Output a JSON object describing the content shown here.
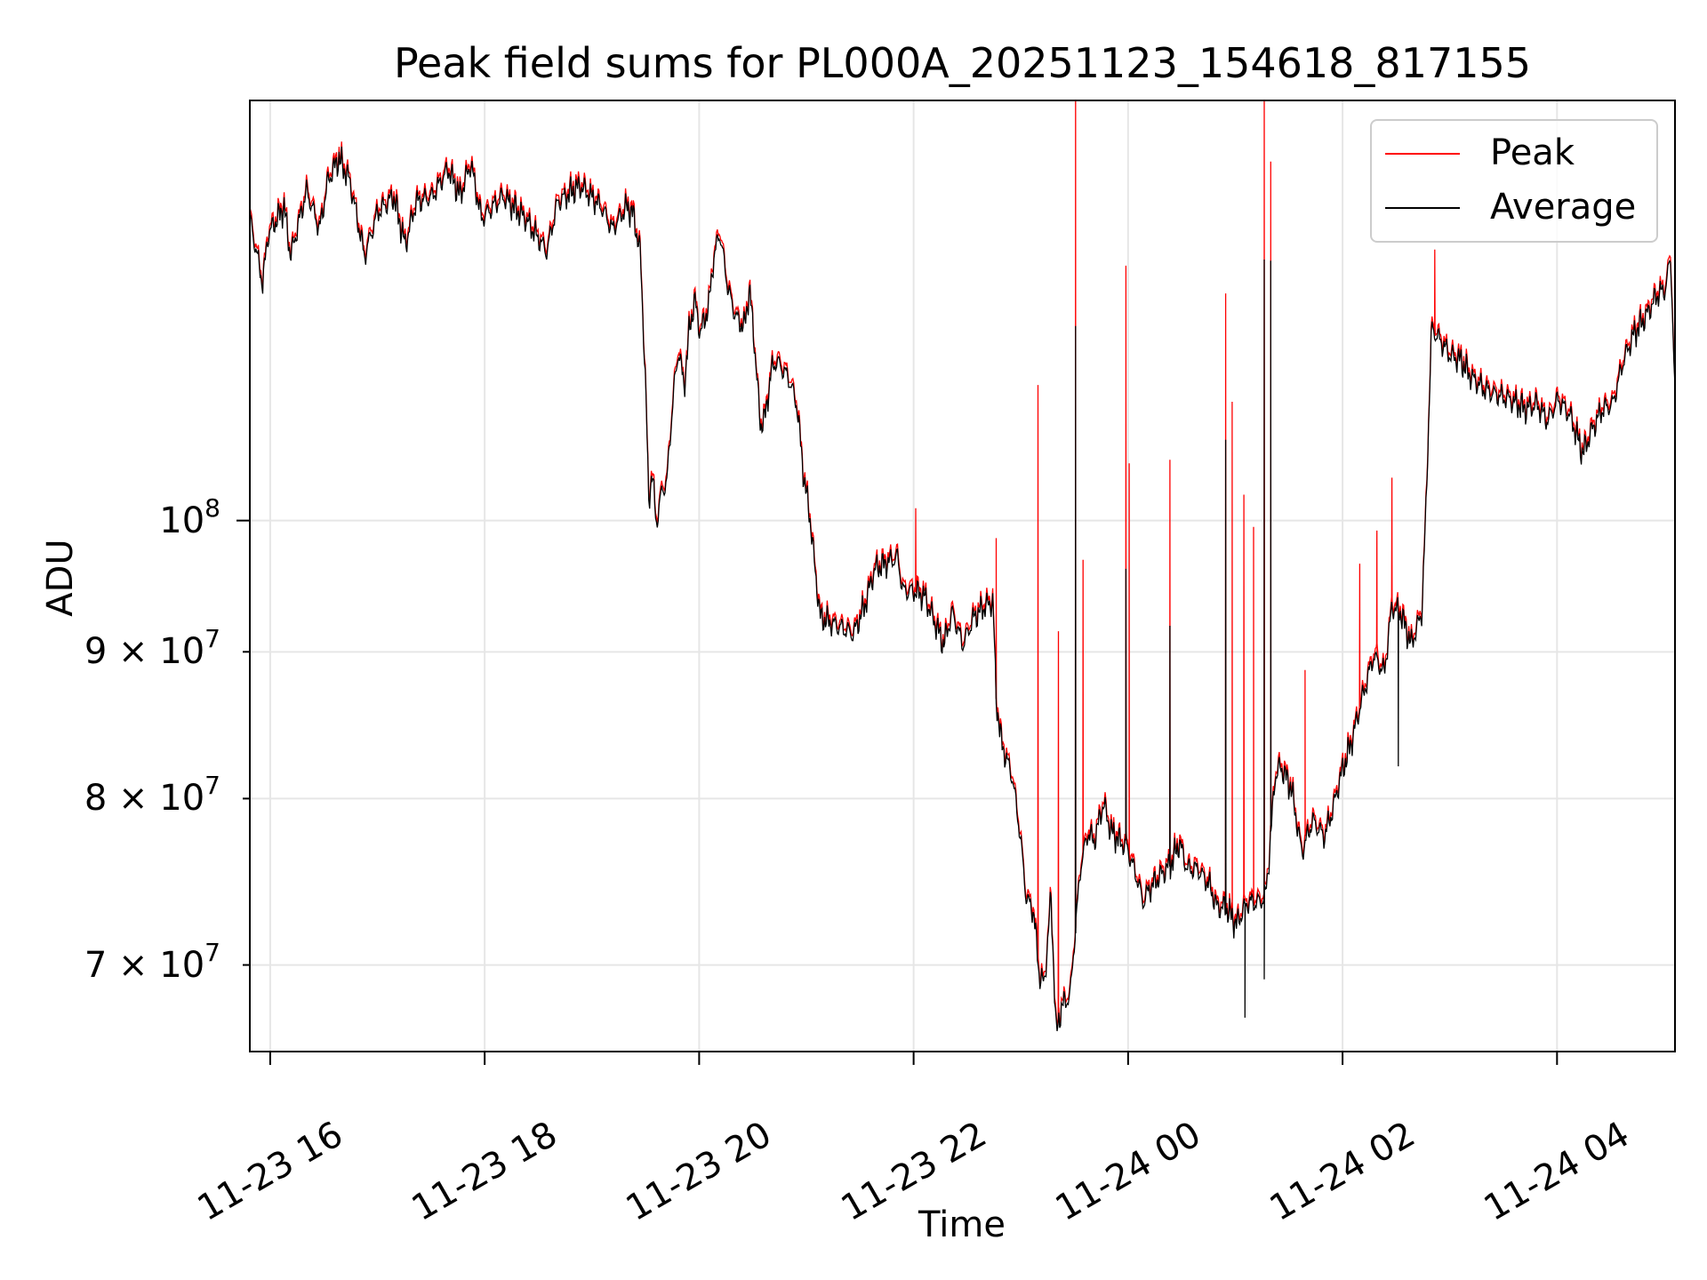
{
  "chart_data": {
    "type": "line",
    "title": "Peak field sums for PL000A_20251123_154618_817155",
    "xlabel": "Time",
    "ylabel": "ADU",
    "x_units": "hours since 11-23 00:00",
    "y_units": "millions of ADU (×1e6)",
    "yscale": "log",
    "xlim": [
      15.81,
      29.1
    ],
    "ylim": [
      65.3,
      140.1
    ],
    "grid": true,
    "legend_position": "top-right",
    "xticks": [
      {
        "value": 16,
        "label": "11-23 16"
      },
      {
        "value": 18,
        "label": "11-23 18"
      },
      {
        "value": 20,
        "label": "11-23 20"
      },
      {
        "value": 22,
        "label": "11-23 22"
      },
      {
        "value": 24,
        "label": "11-24 00"
      },
      {
        "value": 26,
        "label": "11-24 02"
      },
      {
        "value": 28,
        "label": "11-24 04"
      }
    ],
    "yticks": [
      {
        "value": 100,
        "base": "10",
        "exp": "8"
      },
      {
        "value": 90,
        "base": "9 × 10",
        "exp": "7"
      },
      {
        "value": 80,
        "base": "8 × 10",
        "exp": "7"
      },
      {
        "value": 70,
        "base": "7 × 10",
        "exp": "7"
      }
    ],
    "series": [
      {
        "name": "Peak",
        "color": "#ff0000",
        "offset_factor": 1.004,
        "spikes": [
          [
            22.02,
            101.0
          ],
          [
            22.77,
            98.6
          ],
          [
            23.16,
            111.5
          ],
          [
            23.35,
            91.5
          ],
          [
            23.51,
            145
          ],
          [
            23.58,
            96.9
          ],
          [
            23.98,
            122.7
          ],
          [
            24.01,
            104.7
          ],
          [
            24.39,
            105.0
          ],
          [
            24.91,
            120.0
          ],
          [
            24.97,
            110.0
          ],
          [
            25.08,
            102.1
          ],
          [
            25.17,
            99.5
          ],
          [
            25.27,
            145
          ],
          [
            25.33,
            133.4
          ],
          [
            25.65,
            88.7
          ],
          [
            26.16,
            96.6
          ],
          [
            26.32,
            99.2
          ],
          [
            26.46,
            103.5
          ],
          [
            26.86,
            124.3
          ]
        ]
      },
      {
        "name": "Average",
        "color": "#000000",
        "points": [
          [
            15.81,
            127.4
          ],
          [
            15.93,
            120.9
          ],
          [
            15.98,
            125.8
          ],
          [
            16.13,
            128.6
          ],
          [
            16.19,
            123.6
          ],
          [
            16.34,
            130.3
          ],
          [
            16.46,
            126.3
          ],
          [
            16.54,
            131.4
          ],
          [
            16.64,
            133.7
          ],
          [
            16.74,
            131.4
          ],
          [
            16.88,
            123.6
          ],
          [
            17.0,
            128.0
          ],
          [
            17.15,
            129.7
          ],
          [
            17.26,
            124.7
          ],
          [
            17.36,
            129.1
          ],
          [
            17.51,
            129.7
          ],
          [
            17.66,
            132.6
          ],
          [
            17.77,
            129.7
          ],
          [
            17.87,
            133.2
          ],
          [
            17.97,
            127.4
          ],
          [
            18.17,
            129.7
          ],
          [
            18.38,
            127.4
          ],
          [
            18.58,
            124.1
          ],
          [
            18.68,
            129.1
          ],
          [
            18.89,
            130.8
          ],
          [
            19.09,
            128.6
          ],
          [
            19.19,
            126.3
          ],
          [
            19.32,
            128.6
          ],
          [
            19.38,
            128.0
          ],
          [
            19.45,
            124.1
          ],
          [
            19.5,
            111.7
          ],
          [
            19.53,
            101.4
          ],
          [
            19.56,
            104.1
          ],
          [
            19.6,
            99.7
          ],
          [
            19.65,
            102.3
          ],
          [
            19.7,
            103.2
          ],
          [
            19.76,
            110.7
          ],
          [
            19.81,
            114.7
          ],
          [
            19.86,
            111.2
          ],
          [
            19.91,
            116.7
          ],
          [
            19.96,
            119.3
          ],
          [
            20.01,
            116.2
          ],
          [
            20.09,
            118.8
          ],
          [
            20.13,
            123.0
          ],
          [
            20.19,
            126.1
          ],
          [
            20.27,
            120.4
          ],
          [
            20.34,
            117.8
          ],
          [
            20.42,
            116.7
          ],
          [
            20.47,
            120.4
          ],
          [
            20.52,
            114.7
          ],
          [
            20.57,
            107.9
          ],
          [
            20.62,
            108.8
          ],
          [
            20.67,
            112.7
          ],
          [
            20.72,
            113.7
          ],
          [
            20.83,
            112.2
          ],
          [
            20.91,
            109.8
          ],
          [
            20.98,
            103.2
          ],
          [
            21.03,
            100.5
          ],
          [
            21.08,
            96.2
          ],
          [
            21.13,
            92.5
          ],
          [
            21.23,
            92.1
          ],
          [
            21.34,
            91.7
          ],
          [
            21.44,
            91.3
          ],
          [
            21.54,
            93.3
          ],
          [
            21.64,
            96.2
          ],
          [
            21.74,
            96.6
          ],
          [
            21.85,
            97.1
          ],
          [
            21.9,
            94.5
          ],
          [
            22.0,
            94.5
          ],
          [
            22.1,
            94.1
          ],
          [
            22.2,
            92.1
          ],
          [
            22.28,
            90.5
          ],
          [
            22.36,
            92.9
          ],
          [
            22.46,
            90.5
          ],
          [
            22.56,
            92.5
          ],
          [
            22.66,
            93.3
          ],
          [
            22.74,
            93.7
          ],
          [
            22.77,
            86.6
          ],
          [
            22.82,
            83.6
          ],
          [
            22.92,
            81.4
          ],
          [
            22.99,
            77.9
          ],
          [
            23.05,
            73.9
          ],
          [
            23.12,
            73.0
          ],
          [
            23.17,
            69.5
          ],
          [
            23.22,
            68.9
          ],
          [
            23.28,
            73.9
          ],
          [
            23.33,
            66.2
          ],
          [
            23.38,
            67.7
          ],
          [
            23.46,
            68.3
          ],
          [
            23.5,
            71.4
          ],
          [
            23.56,
            75.9
          ],
          [
            23.63,
            77.9
          ],
          [
            23.68,
            77.2
          ],
          [
            23.77,
            79.7
          ],
          [
            23.84,
            77.9
          ],
          [
            23.94,
            77.2
          ],
          [
            23.99,
            76.9
          ],
          [
            24.09,
            74.9
          ],
          [
            24.14,
            73.6
          ],
          [
            24.19,
            74.3
          ],
          [
            24.3,
            75.2
          ],
          [
            24.4,
            75.9
          ],
          [
            24.48,
            77.2
          ],
          [
            24.55,
            75.6
          ],
          [
            24.65,
            75.6
          ],
          [
            24.76,
            74.6
          ],
          [
            24.83,
            73.3
          ],
          [
            24.91,
            73.3
          ],
          [
            25.01,
            72.3
          ],
          [
            25.11,
            73.6
          ],
          [
            25.21,
            73.6
          ],
          [
            25.28,
            73.9
          ],
          [
            25.32,
            76.6
          ],
          [
            25.37,
            81.4
          ],
          [
            25.42,
            82.1
          ],
          [
            25.52,
            80.7
          ],
          [
            25.62,
            76.6
          ],
          [
            25.72,
            78.6
          ],
          [
            25.83,
            77.6
          ],
          [
            25.91,
            79.3
          ],
          [
            25.98,
            81.4
          ],
          [
            26.08,
            83.6
          ],
          [
            26.18,
            86.6
          ],
          [
            26.29,
            89.7
          ],
          [
            26.39,
            88.5
          ],
          [
            26.46,
            93.3
          ],
          [
            26.54,
            92.9
          ],
          [
            26.64,
            90.5
          ],
          [
            26.74,
            92.9
          ],
          [
            26.78,
            101.4
          ],
          [
            26.83,
            116.7
          ],
          [
            26.9,
            115.7
          ],
          [
            27.0,
            114.2
          ],
          [
            27.1,
            113.7
          ],
          [
            27.2,
            112.2
          ],
          [
            27.31,
            111.2
          ],
          [
            27.41,
            110.7
          ],
          [
            27.56,
            110.2
          ],
          [
            27.71,
            109.3
          ],
          [
            27.81,
            109.8
          ],
          [
            27.91,
            108.3
          ],
          [
            28.01,
            110.2
          ],
          [
            28.12,
            108.8
          ],
          [
            28.24,
            105.5
          ],
          [
            28.32,
            107.4
          ],
          [
            28.42,
            109.3
          ],
          [
            28.52,
            109.8
          ],
          [
            28.62,
            113.7
          ],
          [
            28.72,
            116.2
          ],
          [
            28.83,
            117.8
          ],
          [
            28.93,
            119.8
          ],
          [
            29.01,
            120.4
          ],
          [
            29.06,
            123.6
          ],
          [
            29.1,
            110.2
          ]
        ],
        "spikes": [
          [
            23.51,
            116.9
          ],
          [
            25.33,
            123.2
          ],
          [
            23.98,
            96.2
          ],
          [
            24.39,
            91.9
          ],
          [
            24.91,
            106.7
          ],
          [
            25.27,
            123.3
          ],
          [
            25.09,
            67.1
          ],
          [
            25.27,
            69.2
          ],
          [
            26.52,
            82.1
          ]
        ]
      }
    ]
  }
}
